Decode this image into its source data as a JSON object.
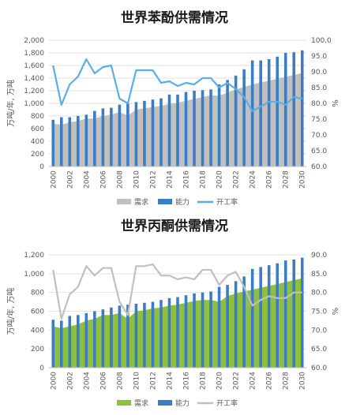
{
  "chart_data": [
    {
      "type": "bar",
      "title": "世界苯酚供需情况",
      "ylabel": "万吨/年, 万吨",
      "y2label": "%",
      "ylim": [
        0,
        2000
      ],
      "y2lim": [
        60,
        100
      ],
      "yticks": [
        "0",
        "200",
        "400",
        "600",
        "800",
        "1,000",
        "1,200",
        "1,400",
        "1,600",
        "1,800",
        "2,000"
      ],
      "y2ticks": [
        "60.0",
        "65.0",
        "70.0",
        "75.0",
        "80.0",
        "85.0",
        "90.0",
        "95.0",
        "100.0"
      ],
      "x": [
        "2000",
        "2001",
        "2002",
        "2003",
        "2004",
        "2005",
        "2006",
        "2007",
        "2008",
        "2009",
        "2010",
        "2011",
        "2012",
        "2013",
        "2014",
        "2015",
        "2016",
        "2017",
        "2018",
        "2019",
        "2020",
        "2021",
        "2022",
        "2023",
        "2024",
        "2025",
        "2026",
        "2027",
        "2028",
        "2029",
        "2030"
      ],
      "xtick_labels": [
        "2000",
        "2002",
        "2004",
        "2006",
        "2008",
        "2010",
        "2012",
        "2014",
        "2016",
        "2018",
        "2020",
        "2022",
        "2024",
        "2026",
        "2028",
        "2030"
      ],
      "series": [
        {
          "name": "需求",
          "type": "area",
          "axis": "left",
          "color": "#c0c0c0",
          "values": [
            680,
            660,
            700,
            720,
            760,
            760,
            800,
            820,
            860,
            810,
            900,
            920,
            940,
            960,
            990,
            1010,
            1040,
            1070,
            1100,
            1130,
            1120,
            1170,
            1220,
            1260,
            1300,
            1330,
            1360,
            1390,
            1420,
            1450,
            1480
          ]
        },
        {
          "name": "能力",
          "type": "bar",
          "axis": "left",
          "color": "#3b7cc2",
          "values": [
            740,
            780,
            780,
            800,
            820,
            880,
            920,
            930,
            980,
            1000,
            1020,
            1040,
            1060,
            1080,
            1140,
            1140,
            1180,
            1200,
            1210,
            1220,
            1300,
            1370,
            1440,
            1540,
            1680,
            1680,
            1700,
            1740,
            1800,
            1810,
            1840
          ]
        },
        {
          "name": "开工率",
          "type": "line",
          "axis": "right",
          "color": "#5aaee4",
          "values": [
            92,
            79.5,
            86,
            88.5,
            94,
            89.5,
            91.5,
            92,
            81.5,
            80,
            90.5,
            90.5,
            90.5,
            86.5,
            87,
            85.5,
            86.5,
            86,
            88,
            88,
            85,
            86.5,
            84.5,
            82,
            77.5,
            79,
            80.5,
            80.5,
            79.5,
            82,
            81.5
          ]
        }
      ],
      "legend": "bottom"
    },
    {
      "type": "bar",
      "title": "世界丙酮供需情况",
      "ylabel": "万吨/年, 万吨",
      "y2label": "%",
      "ylim": [
        0,
        1200
      ],
      "y2lim": [
        60,
        90
      ],
      "yticks": [
        "0",
        "200",
        "400",
        "600",
        "800",
        "1,000",
        "1,200"
      ],
      "y2ticks": [
        "60.0",
        "65.0",
        "70.0",
        "75.0",
        "80.0",
        "85.0",
        "90.0"
      ],
      "x": [
        "2000",
        "2001",
        "2002",
        "2003",
        "2004",
        "2005",
        "2006",
        "2007",
        "2008",
        "2009",
        "2010",
        "2011",
        "2012",
        "2013",
        "2014",
        "2015",
        "2016",
        "2017",
        "2018",
        "2019",
        "2020",
        "2021",
        "2022",
        "2023",
        "2024",
        "2025",
        "2026",
        "2027",
        "2028",
        "2029",
        "2030"
      ],
      "xtick_labels": [
        "2000",
        "2002",
        "2004",
        "2006",
        "2008",
        "2010",
        "2012",
        "2014",
        "2016",
        "2018",
        "2020",
        "2022",
        "2024",
        "2026",
        "2028",
        "2030"
      ],
      "series": [
        {
          "name": "需求",
          "type": "area",
          "axis": "left",
          "color": "#8fbf3f",
          "values": [
            440,
            420,
            440,
            460,
            500,
            520,
            560,
            560,
            580,
            520,
            600,
            610,
            630,
            640,
            660,
            670,
            690,
            710,
            720,
            720,
            700,
            760,
            790,
            810,
            830,
            850,
            870,
            890,
            910,
            930,
            950
          ]
        },
        {
          "name": "能力",
          "type": "bar",
          "axis": "left",
          "color": "#3b7cc2",
          "values": [
            510,
            500,
            550,
            560,
            580,
            600,
            620,
            640,
            660,
            670,
            680,
            690,
            700,
            720,
            740,
            750,
            770,
            790,
            800,
            810,
            860,
            880,
            920,
            970,
            1050,
            1070,
            1090,
            1110,
            1140,
            1150,
            1170
          ]
        },
        {
          "name": "开工率",
          "type": "line",
          "axis": "right",
          "color": "#c0c0c0",
          "values": [
            86,
            73,
            79.5,
            81.5,
            87,
            84.5,
            86.5,
            86.5,
            77.5,
            74,
            87,
            87,
            87.5,
            84.5,
            84.5,
            83.5,
            84,
            83.5,
            86,
            86,
            82,
            84.5,
            85.5,
            81.5,
            76.5,
            78,
            79,
            78.5,
            78.5,
            80,
            80
          ]
        }
      ],
      "legend": "bottom"
    }
  ]
}
